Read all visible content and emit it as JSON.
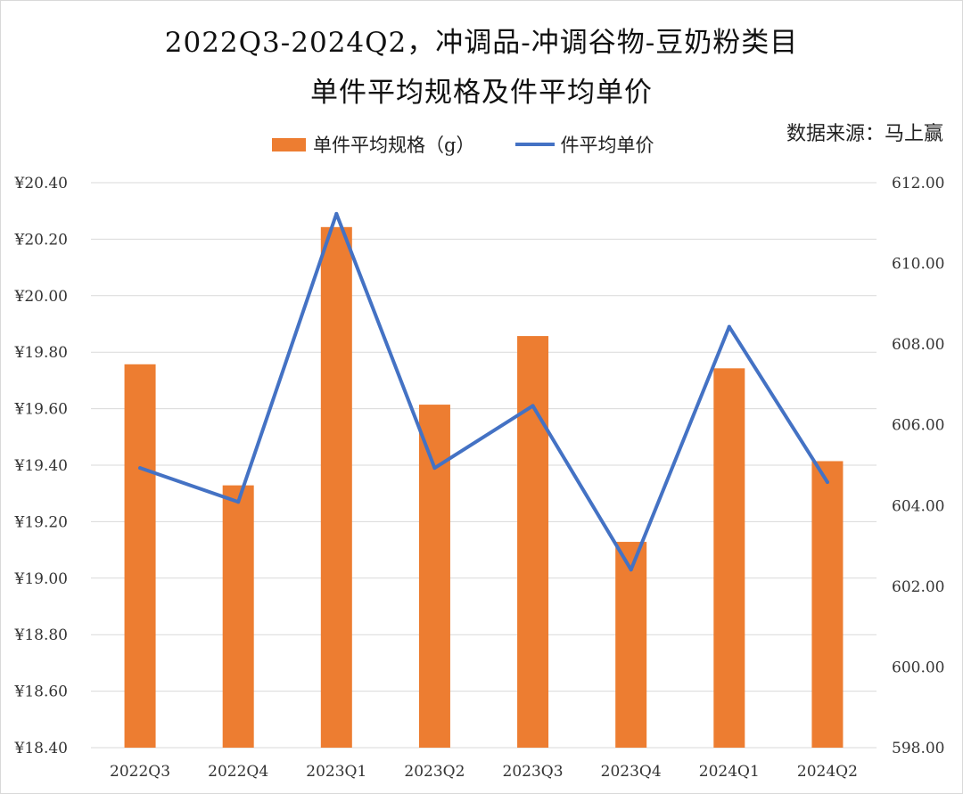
{
  "title_line1": "2022Q3-2024Q2，冲调品-冲调谷物-豆奶粉类目",
  "title_line2": "单件平均规格及件平均单价",
  "source": "数据来源：马上赢",
  "legend": {
    "bar": "单件平均规格（g）",
    "line": "件平均单价"
  },
  "colors": {
    "bar": "#ed7d31",
    "line": "#4472c4",
    "grid": "#d9d9d9"
  },
  "chart_data": {
    "type": "bar",
    "categories": [
      "2022Q3",
      "2022Q4",
      "2023Q1",
      "2023Q2",
      "2023Q3",
      "2023Q4",
      "2024Q1",
      "2024Q2"
    ],
    "series": [
      {
        "name": "单件平均规格（g）",
        "type": "bar",
        "axis": "right",
        "values": [
          607.5,
          604.5,
          610.9,
          606.5,
          608.2,
          603.1,
          607.4,
          605.1
        ]
      },
      {
        "name": "件平均单价",
        "type": "line",
        "axis": "left",
        "values": [
          19.39,
          19.27,
          20.29,
          19.39,
          19.61,
          19.03,
          19.89,
          19.34
        ]
      }
    ],
    "left_axis": {
      "range": [
        18.4,
        20.4
      ],
      "ticks": [
        "¥18.40",
        "¥18.60",
        "¥18.80",
        "¥19.00",
        "¥19.20",
        "¥19.40",
        "¥19.60",
        "¥19.80",
        "¥20.00",
        "¥20.20",
        "¥20.40"
      ]
    },
    "right_axis": {
      "range": [
        598,
        612
      ],
      "ticks": [
        "598.00",
        "600.00",
        "602.00",
        "604.00",
        "606.00",
        "608.00",
        "610.00",
        "612.00"
      ]
    },
    "grid": true,
    "legend_position": "top"
  }
}
